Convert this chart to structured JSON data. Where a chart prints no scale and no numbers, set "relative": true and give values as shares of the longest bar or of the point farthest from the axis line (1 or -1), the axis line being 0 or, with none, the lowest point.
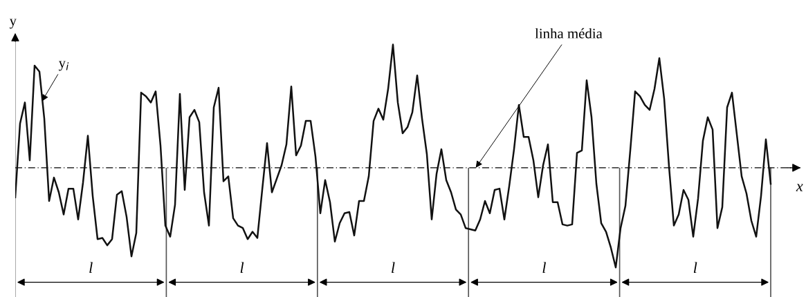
{
  "chart_data": {
    "type": "line",
    "relative": true,
    "xlabel": "x",
    "ylabel": "y",
    "marker": "none",
    "line_style": "solid",
    "categories": [
      null,
      null,
      null,
      null,
      null,
      null,
      null,
      null,
      null,
      null,
      null,
      null,
      null,
      null,
      null,
      null,
      null,
      null,
      null,
      null,
      null,
      null,
      null,
      null,
      null,
      null,
      null,
      null,
      null,
      null,
      null,
      null,
      null,
      null,
      null,
      null,
      null,
      null,
      null,
      null,
      null,
      null,
      null,
      null,
      null,
      null,
      null,
      null,
      null,
      null,
      null,
      null,
      null,
      null,
      null,
      null,
      null,
      null,
      null,
      null,
      null,
      null,
      null,
      null,
      null,
      null,
      null,
      null,
      null,
      null,
      null,
      null,
      null,
      null,
      null,
      null,
      null,
      null,
      null,
      null,
      null,
      null,
      null,
      null,
      null,
      null,
      null,
      null,
      null,
      null,
      null,
      null,
      null,
      null,
      null,
      null,
      null,
      null,
      null,
      null,
      null,
      null,
      null,
      null,
      null,
      null,
      null,
      null,
      null,
      null,
      null,
      null,
      null,
      null,
      null,
      null,
      null,
      null,
      null,
      null,
      null,
      null,
      null,
      null,
      null,
      null,
      null,
      null,
      null,
      null,
      null,
      null,
      null,
      null,
      null,
      null,
      null,
      null,
      null,
      null,
      null,
      null,
      null,
      null,
      null,
      null,
      null,
      null,
      null,
      null,
      null,
      null,
      null,
      null,
      null,
      null,
      null
    ],
    "series": [
      {
        "color": "#111111",
        "values": [
          -0.24,
          0.36,
          0.53,
          0.06,
          0.83,
          0.78,
          0.4,
          -0.27,
          -0.08,
          -0.2,
          -0.38,
          -0.17,
          -0.17,
          -0.42,
          -0.12,
          0.26,
          -0.23,
          -0.58,
          -0.57,
          -0.63,
          -0.58,
          -0.22,
          -0.19,
          -0.4,
          -0.72,
          -0.53,
          0.61,
          0.58,
          0.53,
          0.62,
          0.18,
          -0.47,
          -0.56,
          -0.3,
          0.6,
          -0.18,
          0.41,
          0.47,
          0.37,
          -0.2,
          -0.47,
          0.49,
          0.65,
          -0.11,
          -0.07,
          -0.41,
          -0.47,
          -0.49,
          -0.58,
          -0.52,
          -0.57,
          -0.18,
          0.2,
          -0.2,
          -0.09,
          0.02,
          0.19,
          0.66,
          0.1,
          0.18,
          0.38,
          0.38,
          0.09,
          -0.37,
          -0.1,
          -0.28,
          -0.6,
          -0.45,
          -0.37,
          -0.36,
          -0.55,
          -0.27,
          -0.27,
          -0.07,
          0.38,
          0.48,
          0.39,
          0.64,
          1.0,
          0.53,
          0.28,
          0.33,
          0.45,
          0.75,
          0.4,
          0.11,
          -0.42,
          -0.05,
          0.15,
          -0.1,
          -0.2,
          -0.34,
          -0.38,
          -0.49,
          -0.5,
          -0.51,
          -0.42,
          -0.27,
          -0.37,
          -0.18,
          -0.17,
          -0.42,
          -0.15,
          0.15,
          0.51,
          0.25,
          0.25,
          0.06,
          -0.24,
          0.02,
          0.19,
          -0.28,
          -0.28,
          -0.46,
          -0.47,
          -0.46,
          0.12,
          0.14,
          0.71,
          0.41,
          -0.13,
          -0.45,
          -0.52,
          -0.65,
          -0.81,
          -0.49,
          -0.31,
          0.14,
          0.62,
          0.58,
          0.51,
          0.47,
          0.64,
          0.89,
          0.56,
          0.01,
          -0.47,
          -0.38,
          -0.18,
          -0.26,
          -0.56,
          -0.25,
          0.22,
          0.41,
          0.31,
          -0.49,
          -0.32,
          0.49,
          0.61,
          0.27,
          -0.07,
          -0.21,
          -0.43,
          -0.56,
          -0.23,
          0.23,
          -0.13
        ]
      }
    ],
    "ref_lines": [
      {
        "axis": "y",
        "value": 0,
        "color": "#000000"
      }
    ],
    "annotations": [
      "linha média",
      "y$_{i}$",
      "l",
      "l",
      "l",
      "l",
      "l"
    ]
  }
}
